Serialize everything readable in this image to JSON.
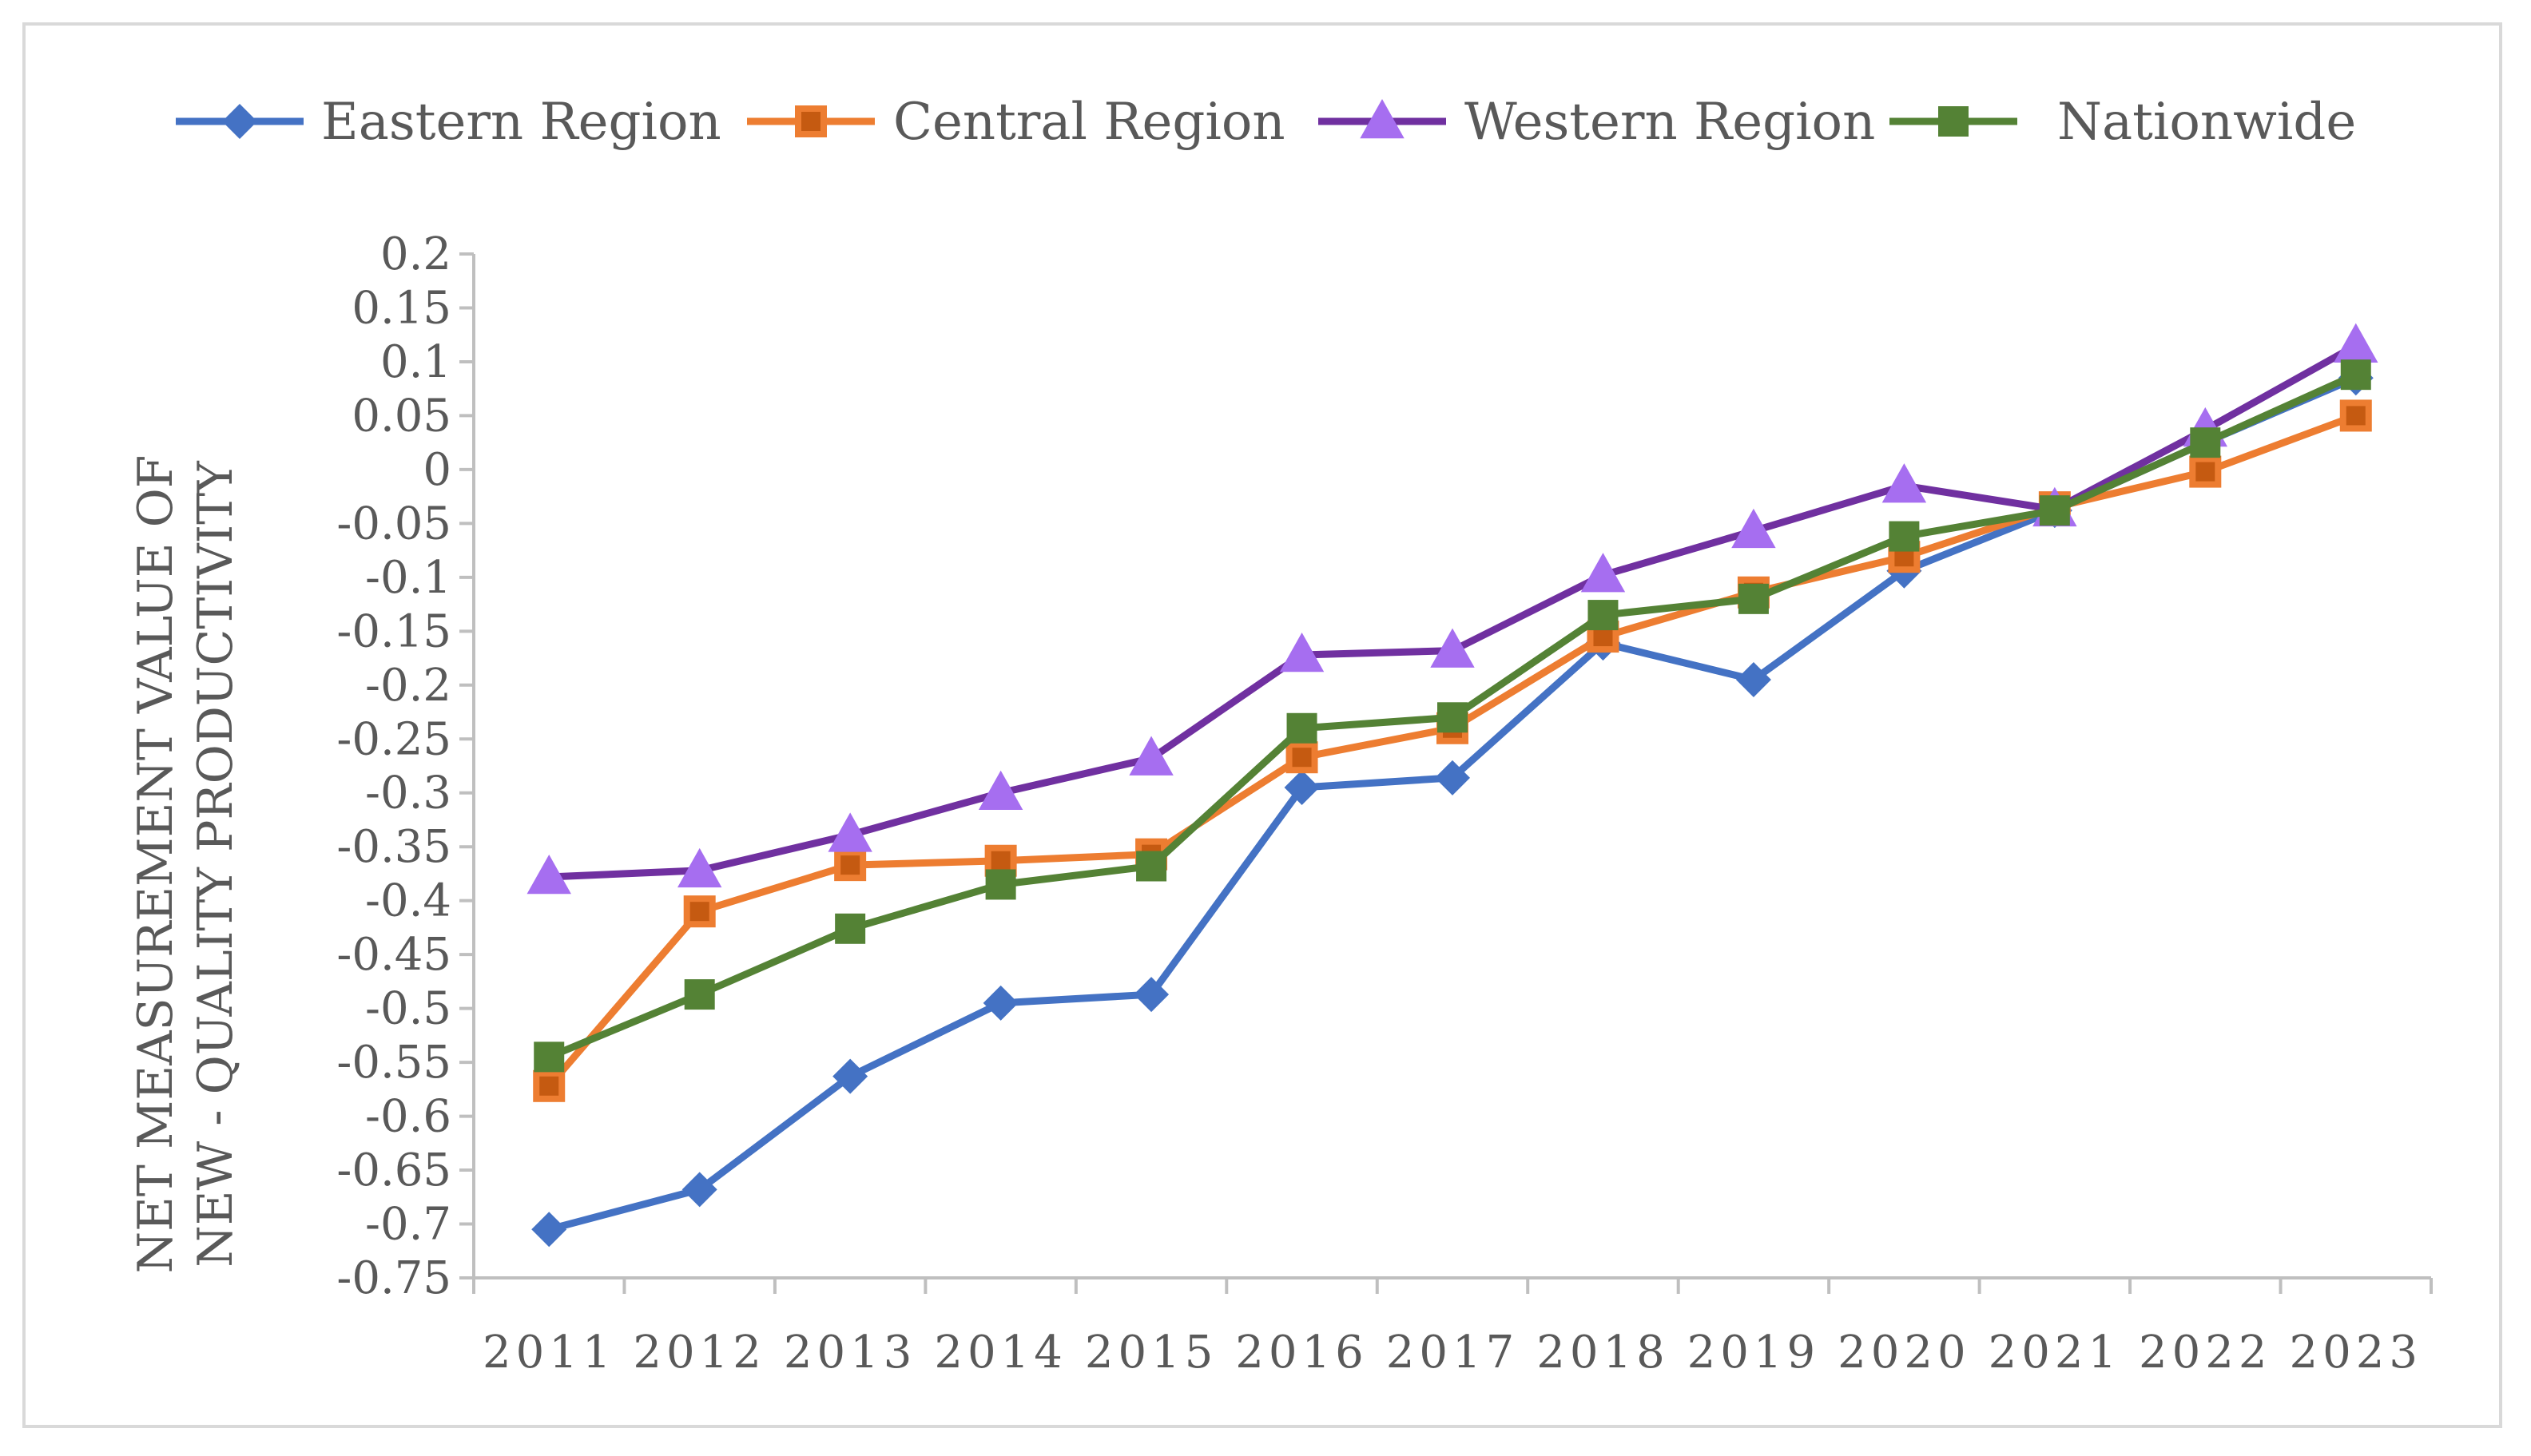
{
  "chart_data": {
    "type": "line",
    "title": "",
    "xlabel": "",
    "ylabel_lines": [
      "NET MEASUREMENT VALUE OF",
      "NEW - QUALITY PRODUCTIVITY"
    ],
    "ylim": [
      -0.75,
      0.2
    ],
    "ytick_step": 0.05,
    "yticks": [
      "0.2",
      "0.15",
      "0.1",
      "0.05",
      "0",
      "-0.05",
      "-0.1",
      "-0.15",
      "-0.2",
      "-0.25",
      "-0.3",
      "-0.35",
      "-0.4",
      "-0.45",
      "-0.5",
      "-0.55",
      "-0.6",
      "-0.65",
      "-0.7",
      "-0.75"
    ],
    "categories": [
      "2011",
      "2012",
      "2013",
      "2014",
      "2015",
      "2016",
      "2017",
      "2018",
      "2019",
      "2020",
      "2021",
      "2022",
      "2023"
    ],
    "legend_position": "top",
    "grid": false,
    "series": [
      {
        "name": "Eastern Region",
        "marker": "diamond",
        "color": "#4472c4",
        "values": [
          -0.705,
          -0.668,
          -0.563,
          -0.495,
          -0.487,
          -0.295,
          -0.286,
          -0.161,
          -0.195,
          -0.094,
          -0.038,
          0.025,
          0.085
        ]
      },
      {
        "name": "Central Region",
        "marker": "square-hollow",
        "color": "#ed7d31",
        "fill": "#c55a11",
        "values": [
          -0.572,
          -0.41,
          -0.367,
          -0.363,
          -0.357,
          -0.267,
          -0.24,
          -0.155,
          -0.114,
          -0.081,
          -0.035,
          -0.002,
          0.05
        ]
      },
      {
        "name": "Western Region",
        "marker": "triangle",
        "color": "#7030a0",
        "fill": "#a66ef0",
        "values": [
          -0.378,
          -0.372,
          -0.339,
          -0.3,
          -0.268,
          -0.172,
          -0.168,
          -0.098,
          -0.057,
          -0.015,
          -0.037,
          0.037,
          0.115
        ]
      },
      {
        "name": "Nationwide",
        "marker": "square",
        "color": "#548235",
        "values": [
          -0.545,
          -0.487,
          -0.426,
          -0.385,
          -0.368,
          -0.24,
          -0.23,
          -0.135,
          -0.12,
          -0.062,
          -0.038,
          0.025,
          0.088
        ]
      }
    ]
  }
}
